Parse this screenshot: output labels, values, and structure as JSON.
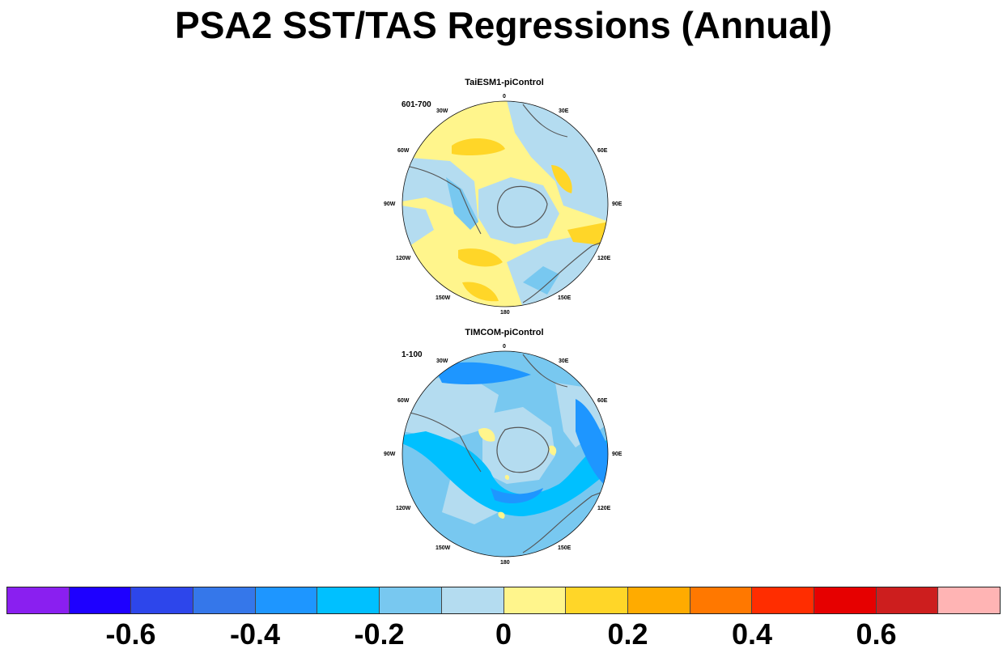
{
  "title": "PSA2 SST/TAS Regressions (Annual)",
  "panels": [
    {
      "title": "TaiESM1-piControl",
      "period": "601-700",
      "lon_labels": [
        "0",
        "30E",
        "60E",
        "90E",
        "120E",
        "150E",
        "180",
        "150W",
        "120W",
        "90W",
        "60W",
        "30W"
      ]
    },
    {
      "title": "TIMCOM-piControl",
      "period": "1-100",
      "lon_labels": [
        "0",
        "30E",
        "60E",
        "90E",
        "120E",
        "150E",
        "180",
        "150W",
        "120W",
        "90W",
        "60W",
        "30W"
      ]
    }
  ],
  "colorbar": {
    "colors": [
      "#8a1ff0",
      "#1e00ff",
      "#2d46eb",
      "#3577ea",
      "#1e96ff",
      "#00c0ff",
      "#78c8f0",
      "#b4dcf0",
      "#fff58c",
      "#ffd628",
      "#ffab00",
      "#ff7800",
      "#ff2d00",
      "#e60000",
      "#cd1e1e",
      "#ffb4b4"
    ],
    "tick_labels": [
      "-0.6",
      "-0.4",
      "-0.2",
      "0",
      "0.2",
      "0.4",
      "0.6"
    ]
  }
}
